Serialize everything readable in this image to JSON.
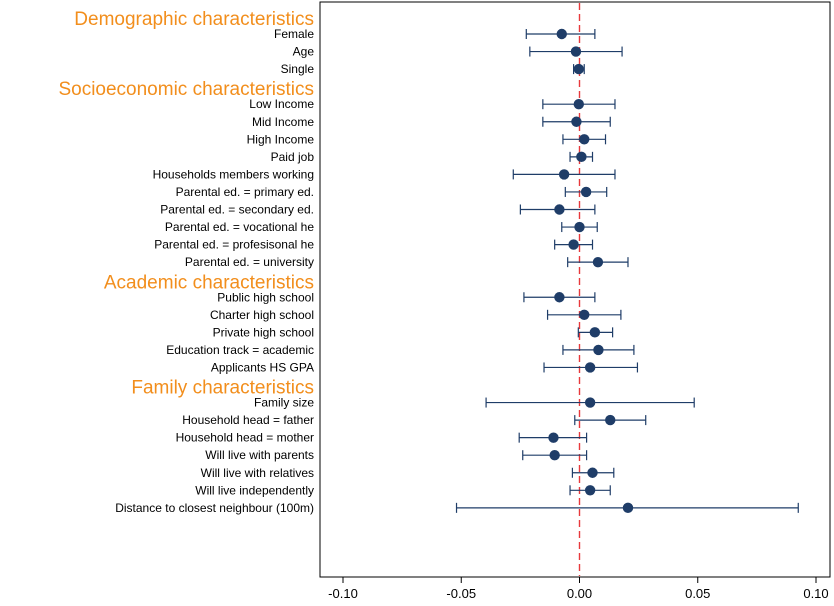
{
  "chart_data": {
    "type": "coefficient-plot",
    "title": "",
    "xlabel": "",
    "ylabel": "",
    "xlim": [
      -0.1,
      0.1
    ],
    "xticks": [
      "-0.10",
      "-0.05",
      "0.00",
      "0.05",
      "0.10"
    ],
    "reference_line": {
      "x": 0.0,
      "style": "dashed",
      "color": "#e8393c"
    },
    "colors": {
      "marker": "#1f3d68",
      "group_title": "#f28e1c",
      "reference": "#e8393c"
    },
    "groups": [
      {
        "title": "Demographic characteristics",
        "items": [
          {
            "label": "Female",
            "estimate": -0.0075,
            "ci": [
              -0.0225,
              0.0065
            ]
          },
          {
            "label": "Age",
            "estimate": -0.0015,
            "ci": [
              -0.021,
              0.018
            ]
          },
          {
            "label": "Single",
            "estimate": -0.0003,
            "ci": [
              -0.0025,
              0.002
            ]
          }
        ]
      },
      {
        "title": "Socioeconomic characteristics",
        "items": [
          {
            "label": "Low Income",
            "estimate": -0.0003,
            "ci": [
              -0.0155,
              0.015
            ]
          },
          {
            "label": "Mid Income",
            "estimate": -0.0013,
            "ci": [
              -0.0155,
              0.013
            ]
          },
          {
            "label": "High Income",
            "estimate": 0.002,
            "ci": [
              -0.007,
              0.011
            ]
          },
          {
            "label": "Paid job",
            "estimate": 0.0008,
            "ci": [
              -0.004,
              0.0055
            ]
          },
          {
            "label": "Households members working",
            "estimate": -0.0065,
            "ci": [
              -0.028,
              0.015
            ]
          },
          {
            "label": "Parental ed. = primary ed.",
            "estimate": 0.0028,
            "ci": [
              -0.006,
              0.0115
            ]
          },
          {
            "label": "Parental ed. = secondary ed.",
            "estimate": -0.0085,
            "ci": [
              -0.025,
              0.0065
            ]
          },
          {
            "label": "Parental ed. = vocational he",
            "estimate": 0.0,
            "ci": [
              -0.0075,
              0.0075
            ]
          },
          {
            "label": "Parental ed. = profesisonal he",
            "estimate": -0.0025,
            "ci": [
              -0.0105,
              0.0055
            ]
          },
          {
            "label": "Parental ed. = university",
            "estimate": 0.0078,
            "ci": [
              -0.005,
              0.0205
            ]
          }
        ]
      },
      {
        "title": "Academic characteristics",
        "items": [
          {
            "label": "Public high school",
            "estimate": -0.0085,
            "ci": [
              -0.0235,
              0.0065
            ]
          },
          {
            "label": "Charter high school",
            "estimate": 0.002,
            "ci": [
              -0.0135,
              0.0175
            ]
          },
          {
            "label": "Private high school",
            "estimate": 0.0065,
            "ci": [
              -0.0005,
              0.014
            ]
          },
          {
            "label": "Education track = academic",
            "estimate": 0.008,
            "ci": [
              -0.007,
              0.023
            ]
          },
          {
            "label": "Applicants HS GPA",
            "estimate": 0.0045,
            "ci": [
              -0.015,
              0.0245
            ]
          }
        ]
      },
      {
        "title": "Family characteristics",
        "items": [
          {
            "label": "Family size",
            "estimate": 0.0045,
            "ci": [
              -0.0395,
              0.0485
            ]
          },
          {
            "label": "Household head = father",
            "estimate": 0.013,
            "ci": [
              -0.002,
              0.028
            ]
          },
          {
            "label": "Household head = mother",
            "estimate": -0.011,
            "ci": [
              -0.0255,
              0.003
            ]
          },
          {
            "label": "Will live with parents",
            "estimate": -0.0105,
            "ci": [
              -0.024,
              0.003
            ]
          },
          {
            "label": "Will live with relatives",
            "estimate": 0.0055,
            "ci": [
              -0.003,
              0.0145
            ]
          },
          {
            "label": "Will live independently",
            "estimate": 0.0045,
            "ci": [
              -0.004,
              0.013
            ]
          },
          {
            "label": "Distance to closest neighbour (100m)",
            "estimate": 0.0205,
            "ci": [
              -0.052,
              0.0925
            ]
          }
        ]
      }
    ]
  }
}
